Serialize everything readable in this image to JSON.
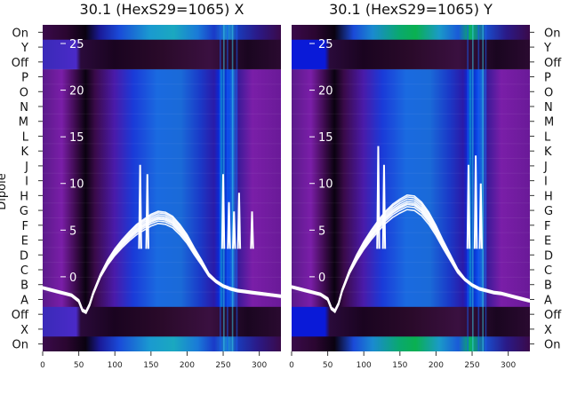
{
  "chart_data": [
    {
      "type": "heatmap",
      "title": "30.1 (HexS29=1065) X",
      "ylabel": "Dipole",
      "x_ticks": [
        0,
        50,
        100,
        150,
        200,
        250,
        300
      ],
      "xlim": [
        0,
        330
      ],
      "row_labels_top_to_bottom": [
        "On",
        "Y",
        "Off",
        "P",
        "O",
        "N",
        "M",
        "L",
        "K",
        "J",
        "I",
        "H",
        "G",
        "F",
        "E",
        "D",
        "C",
        "B",
        "A",
        "Off",
        "X",
        "On"
      ],
      "overlay_y_ticks": [
        0,
        5,
        10,
        15,
        20,
        25
      ],
      "overlay_ylim": [
        -8,
        27
      ],
      "overlay_curve_x": [
        0,
        10,
        20,
        30,
        40,
        50,
        55,
        60,
        65,
        70,
        80,
        90,
        100,
        110,
        120,
        130,
        140,
        150,
        160,
        170,
        180,
        190,
        200,
        210,
        220,
        230,
        240,
        250,
        260,
        270,
        280,
        290,
        300,
        310,
        320,
        330
      ],
      "overlay_curve_y": [
        -1.2,
        -1.4,
        -1.6,
        -1.8,
        -2.0,
        -2.6,
        -3.6,
        -3.8,
        -3.0,
        -1.8,
        0.1,
        1.5,
        2.6,
        3.5,
        4.3,
        5.0,
        5.5,
        6.0,
        6.3,
        6.2,
        5.8,
        5.0,
        4.0,
        2.7,
        1.5,
        0.2,
        -0.5,
        -1.0,
        -1.3,
        -1.5,
        -1.6,
        -1.7,
        -1.8,
        -1.9,
        -2.0,
        -2.1
      ],
      "overlay_spikes": [
        {
          "x": 135,
          "y": 12
        },
        {
          "x": 145,
          "y": 11
        },
        {
          "x": 250,
          "y": 11
        },
        {
          "x": 258,
          "y": 8
        },
        {
          "x": 265,
          "y": 7
        },
        {
          "x": 272,
          "y": 9
        },
        {
          "x": 290,
          "y": 7
        }
      ]
    },
    {
      "type": "heatmap",
      "title": "30.1 (HexS29=1065) Y",
      "x_ticks": [
        0,
        50,
        100,
        150,
        200,
        250,
        300
      ],
      "xlim": [
        0,
        330
      ],
      "row_labels_top_to_bottom": [
        "On",
        "Y",
        "Off",
        "P",
        "O",
        "N",
        "M",
        "L",
        "K",
        "J",
        "I",
        "H",
        "G",
        "F",
        "E",
        "D",
        "C",
        "B",
        "A",
        "Off",
        "X",
        "On"
      ],
      "overlay_y_ticks": [
        0,
        5,
        10,
        15,
        20,
        25
      ],
      "overlay_ylim": [
        -8,
        27
      ],
      "overlay_curve_x": [
        0,
        10,
        20,
        30,
        40,
        50,
        55,
        60,
        65,
        70,
        80,
        90,
        100,
        110,
        120,
        130,
        140,
        150,
        160,
        170,
        180,
        190,
        200,
        210,
        220,
        230,
        240,
        250,
        260,
        270,
        280,
        290,
        300,
        310,
        320,
        330
      ],
      "overlay_curve_y": [
        -1.1,
        -1.3,
        -1.5,
        -1.7,
        -1.9,
        -2.4,
        -3.4,
        -3.7,
        -2.9,
        -1.5,
        0.5,
        2.0,
        3.3,
        4.4,
        5.4,
        6.3,
        7.0,
        7.5,
        7.9,
        7.8,
        7.2,
        6.2,
        4.9,
        3.4,
        2.0,
        0.6,
        -0.3,
        -0.9,
        -1.3,
        -1.5,
        -1.7,
        -1.8,
        -2.0,
        -2.2,
        -2.4,
        -2.6
      ],
      "overlay_spikes": [
        {
          "x": 120,
          "y": 14
        },
        {
          "x": 128,
          "y": 12
        },
        {
          "x": 245,
          "y": 12
        },
        {
          "x": 255,
          "y": 13
        },
        {
          "x": 262,
          "y": 10
        }
      ]
    }
  ]
}
